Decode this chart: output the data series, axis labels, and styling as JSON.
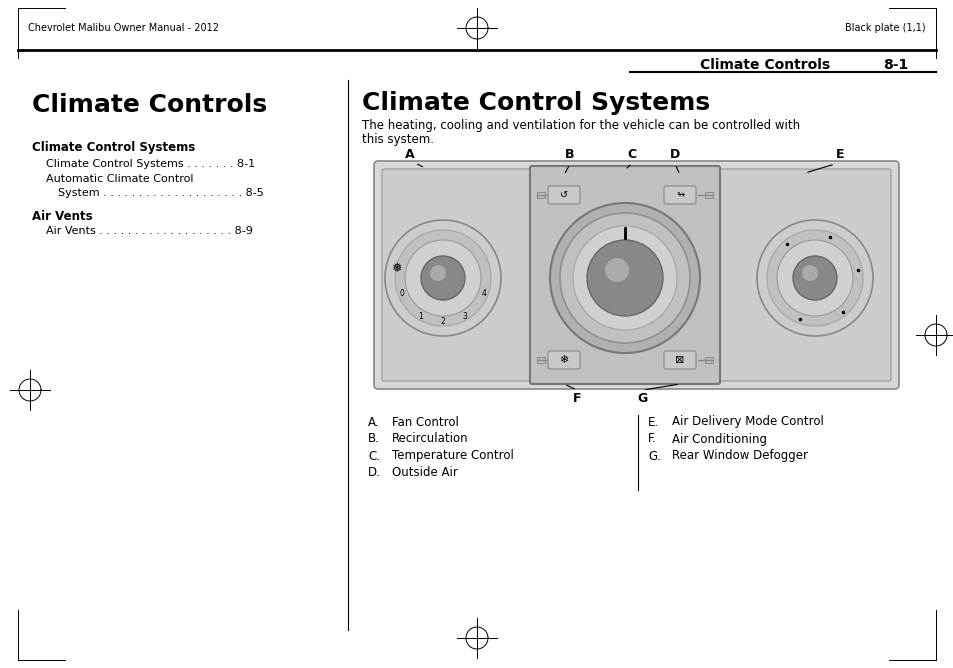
{
  "page_title_left": "Chevrolet Malibu Owner Manual - 2012",
  "page_title_right": "Black plate (1,1)",
  "section_header_bold": "Climate Controls",
  "section_header_num": "8-1",
  "left_title": "Climate Controls",
  "toc_header1": "Climate Control Systems",
  "toc_item1": "Climate Control Systems . . . . . . . 8-1",
  "toc_item2": "Automatic Climate Control",
  "toc_item3": "System . . . . . . . . . . . . . . . . . . . . 8-5",
  "toc_header2": "Air Vents",
  "toc_item4": "Air Vents . . . . . . . . . . . . . . . . . . . 8-9",
  "right_title": "Climate Control Systems",
  "body_text1": "The heating, cooling and ventilation for the vehicle can be controlled with",
  "body_text2": "this system.",
  "labels_top": [
    "A",
    "B",
    "C",
    "D",
    "E"
  ],
  "labels_bottom": [
    "F",
    "G"
  ],
  "left_list": [
    [
      "A.",
      "Fan Control"
    ],
    [
      "B.",
      "Recirculation"
    ],
    [
      "C.",
      "Temperature Control"
    ],
    [
      "D.",
      "Outside Air"
    ]
  ],
  "right_list": [
    [
      "E.",
      "Air Delivery Mode Control"
    ],
    [
      "F.",
      "Air Conditioning"
    ],
    [
      "G.",
      "Rear Window Defogger"
    ]
  ],
  "bg_color": "#ffffff",
  "text_color": "#000000",
  "panel_outer_color": "#d4d4d4",
  "panel_inner_color": "#c8c8c8",
  "knob_outer_color": "#b8b8b8",
  "knob_mid_color": "#c8c8c8",
  "knob_inner_color": "#d8d8d8",
  "knob_center_color": "#888888",
  "center_panel_color": "#bebebe",
  "button_color": "#c4c4c4"
}
